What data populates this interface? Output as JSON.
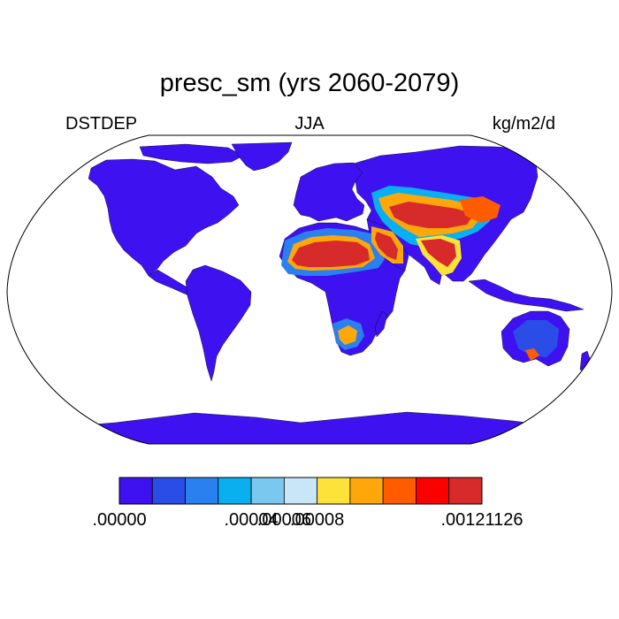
{
  "title": "presc_sm (yrs 2060-2079)",
  "left_string": "DSTDEP",
  "center_string": "JJA",
  "right_string": "kg/m2/d",
  "map": {
    "projection": "robinson",
    "land_background_color": "#3e12f0",
    "ocean_color": "#ffffff",
    "coastline_color": "#000000",
    "regions": [
      {
        "name": "sahara",
        "level": 10
      },
      {
        "name": "arabia",
        "level": 10
      },
      {
        "name": "iran-central-asia",
        "level": 10
      },
      {
        "name": "india-thar",
        "level": 10
      },
      {
        "name": "taklamakan-gobi",
        "level": 10
      },
      {
        "name": "kalahari",
        "level": 9
      },
      {
        "name": "australia-interior",
        "level": 5
      }
    ]
  },
  "colorbar": {
    "colors": [
      "#3e12f0",
      "#2a4de8",
      "#2b80f0",
      "#0aafef",
      "#7ac8ef",
      "#c8e6f8",
      "#fde23a",
      "#fda70a",
      "#ff5c00",
      "#fc0000",
      "#d72a2a"
    ],
    "labels": [
      ".00000",
      ".00004",
      ".00006",
      ".00008",
      ".00121126"
    ],
    "label_boundaries": [
      0,
      4,
      5,
      6,
      8
    ]
  }
}
